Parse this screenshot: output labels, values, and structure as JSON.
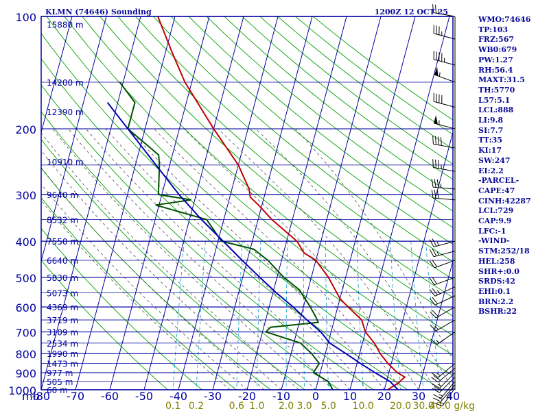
{
  "title": "KLMN (74646) Sounding",
  "datetime": "1200Z 12 OCT 25",
  "colors": {
    "border": "#0000a0",
    "temperature": "#c00000",
    "dewpoint": "#005000",
    "parcel": "#0000b0",
    "dry_adiabat": "#00a000",
    "moist_adiabat": "#505050",
    "mixing_ratio": "#00a0c0",
    "mixing_ratio_labels": "#808000",
    "wind_barbs": "#000000"
  },
  "stats": [
    "WMO:74646",
    "TP:103",
    "FRZ:567",
    "WB0:679",
    "PW:1.27",
    "RH:56.4",
    "MAXT:31.5",
    "TH:5770",
    "L57:5.1",
    "LCL:888",
    "LI:9.8",
    "SI:7.7",
    "TT:35",
    "KI:17",
    "SW:247",
    "EI:2.2",
    "-PARCEL-",
    "CAPE:47",
    "CINH:42287",
    "LCL:729",
    "CAP:9.9",
    "LFC:-1",
    "-WIND-",
    "STM:252/18",
    "HEL:258",
    "SHR+:0.0",
    "SRDS:42",
    "EHI:0.1",
    "BRN:2.2",
    "BSHR:22"
  ],
  "chart_data": {
    "type": "line",
    "title": "KLMN (74646) Sounding",
    "subtitle": "1200Z 12 OCT 25",
    "x_axis": {
      "label": "",
      "ticks": [
        -80,
        -70,
        -60,
        -50,
        -40,
        -30,
        -20,
        -10,
        0,
        10,
        20,
        30,
        40
      ],
      "range": [
        -80,
        40
      ],
      "units_note": "°C (skewed)"
    },
    "y_axis": {
      "label": "mb",
      "scale": "log",
      "range": [
        1000,
        100
      ],
      "ticks": [
        100,
        200,
        300,
        400,
        500,
        600,
        700,
        800,
        900,
        1000
      ]
    },
    "height_labels": [
      {
        "p": 105,
        "label": "15880 m"
      },
      {
        "p": 150,
        "label": "14200 m"
      },
      {
        "p": 180,
        "label": "12390 m"
      },
      {
        "p": 245,
        "label": "10910 m"
      },
      {
        "p": 300,
        "label": "9640 m"
      },
      {
        "p": 350,
        "label": "8532 m"
      },
      {
        "p": 400,
        "label": "7550 m"
      },
      {
        "p": 450,
        "label": "6640 m"
      },
      {
        "p": 500,
        "label": "5830 m"
      },
      {
        "p": 550,
        "label": "5073 m"
      },
      {
        "p": 600,
        "label": "4369 m"
      },
      {
        "p": 650,
        "label": "3719 m"
      },
      {
        "p": 700,
        "label": "3109 m"
      },
      {
        "p": 750,
        "label": "2534 m"
      },
      {
        "p": 800,
        "label": "1990 m"
      },
      {
        "p": 850,
        "label": "1473 m"
      },
      {
        "p": 900,
        "label": "977 m"
      },
      {
        "p": 950,
        "label": "505 m"
      },
      {
        "p": 1000,
        "label": "60 m"
      }
    ],
    "mixing_ratio_labels": [
      "0.1",
      "0.2",
      "0.6",
      "1.0",
      "2.0",
      "3.0",
      "5.0",
      "10.0",
      "20.0",
      "30.0",
      "40.0"
    ],
    "mixing_ratio_units": "g/kg",
    "grid": true,
    "legend": "none",
    "series": [
      {
        "role": "temperature",
        "points": [
          {
            "p": 1000,
            "t": 21.0
          },
          {
            "p": 960,
            "t": 23.5
          },
          {
            "p": 925,
            "t": 25.0
          },
          {
            "p": 900,
            "t": 22.5
          },
          {
            "p": 850,
            "t": 19.0
          },
          {
            "p": 800,
            "t": 16.0
          },
          {
            "p": 750,
            "t": 13.5
          },
          {
            "p": 700,
            "t": 10.0
          },
          {
            "p": 675,
            "t": 9.0
          },
          {
            "p": 650,
            "t": 8.0
          },
          {
            "p": 600,
            "t": 3.0
          },
          {
            "p": 570,
            "t": 0.0
          },
          {
            "p": 500,
            "t": -5.0
          },
          {
            "p": 450,
            "t": -10.0
          },
          {
            "p": 430,
            "t": -14.0
          },
          {
            "p": 400,
            "t": -17.0
          },
          {
            "p": 350,
            "t": -26.0
          },
          {
            "p": 320,
            "t": -31.0
          },
          {
            "p": 305,
            "t": -34.0
          },
          {
            "p": 290,
            "t": -35.0
          },
          {
            "p": 250,
            "t": -40.0
          },
          {
            "p": 200,
            "t": -50.0
          },
          {
            "p": 150,
            "t": -62.0
          },
          {
            "p": 125,
            "t": -68.0
          },
          {
            "p": 100,
            "t": -75.0
          }
        ]
      },
      {
        "role": "dewpoint",
        "points": [
          {
            "p": 1000,
            "t": 5.0
          },
          {
            "p": 950,
            "t": 3.0
          },
          {
            "p": 900,
            "t": -2.0
          },
          {
            "p": 850,
            "t": -1.0
          },
          {
            "p": 800,
            "t": -4.0
          },
          {
            "p": 750,
            "t": -8.0
          },
          {
            "p": 700,
            "t": -19.0
          },
          {
            "p": 680,
            "t": -18.0
          },
          {
            "p": 660,
            "t": -4.5
          },
          {
            "p": 640,
            "t": -5.5
          },
          {
            "p": 600,
            "t": -8.0
          },
          {
            "p": 540,
            "t": -12.5
          },
          {
            "p": 500,
            "t": -18.0
          },
          {
            "p": 450,
            "t": -24.0
          },
          {
            "p": 420,
            "t": -29.0
          },
          {
            "p": 400,
            "t": -39.0
          },
          {
            "p": 350,
            "t": -45.0
          },
          {
            "p": 320,
            "t": -61.0
          },
          {
            "p": 310,
            "t": -51.0
          },
          {
            "p": 300,
            "t": -61.0
          },
          {
            "p": 250,
            "t": -63.0
          },
          {
            "p": 235,
            "t": -64.0
          },
          {
            "p": 200,
            "t": -75.0
          },
          {
            "p": 170,
            "t": -75.0
          },
          {
            "p": 150,
            "t": -81.0
          }
        ]
      },
      {
        "role": "parcel",
        "points": [
          {
            "p": 1000,
            "t": 24.0
          },
          {
            "p": 950,
            "t": 21.0
          },
          {
            "p": 900,
            "t": 16.0
          },
          {
            "p": 850,
            "t": 11.0
          },
          {
            "p": 800,
            "t": 6.0
          },
          {
            "p": 750,
            "t": 0.5
          },
          {
            "p": 700,
            "t": -3.0
          },
          {
            "p": 650,
            "t": -8.0
          },
          {
            "p": 600,
            "t": -13.0
          },
          {
            "p": 550,
            "t": -19.0
          },
          {
            "p": 500,
            "t": -25.0
          },
          {
            "p": 450,
            "t": -31.5
          },
          {
            "p": 400,
            "t": -38.5
          },
          {
            "p": 350,
            "t": -46.5
          },
          {
            "p": 300,
            "t": -55.0
          },
          {
            "p": 250,
            "t": -64.0
          },
          {
            "p": 200,
            "t": -75.0
          },
          {
            "p": 170,
            "t": -83.0
          }
        ]
      }
    ],
    "winds": [
      {
        "p": 100,
        "dir": 280,
        "spd": 25
      },
      {
        "p": 115,
        "dir": 285,
        "spd": 35
      },
      {
        "p": 135,
        "dir": 285,
        "spd": 45
      },
      {
        "p": 150,
        "dir": 290,
        "spd": 55
      },
      {
        "p": 175,
        "dir": 285,
        "spd": 40
      },
      {
        "p": 200,
        "dir": 285,
        "spd": 55
      },
      {
        "p": 225,
        "dir": 280,
        "spd": 40
      },
      {
        "p": 260,
        "dir": 280,
        "spd": 35
      },
      {
        "p": 290,
        "dir": 275,
        "spd": 35
      },
      {
        "p": 310,
        "dir": 275,
        "spd": 30
      },
      {
        "p": 400,
        "dir": 255,
        "spd": 25
      },
      {
        "p": 425,
        "dir": 255,
        "spd": 25
      },
      {
        "p": 450,
        "dir": 250,
        "spd": 20
      },
      {
        "p": 500,
        "dir": 250,
        "spd": 20
      },
      {
        "p": 530,
        "dir": 245,
        "spd": 25
      },
      {
        "p": 560,
        "dir": 245,
        "spd": 20
      },
      {
        "p": 600,
        "dir": 240,
        "spd": 20
      },
      {
        "p": 650,
        "dir": 240,
        "spd": 15
      },
      {
        "p": 700,
        "dir": 235,
        "spd": 15
      },
      {
        "p": 850,
        "dir": 230,
        "spd": 15
      },
      {
        "p": 875,
        "dir": 230,
        "spd": 20
      },
      {
        "p": 900,
        "dir": 225,
        "spd": 15
      },
      {
        "p": 925,
        "dir": 225,
        "spd": 20
      },
      {
        "p": 950,
        "dir": 220,
        "spd": 15
      },
      {
        "p": 970,
        "dir": 220,
        "spd": 15
      },
      {
        "p": 990,
        "dir": 215,
        "spd": 15
      }
    ]
  }
}
